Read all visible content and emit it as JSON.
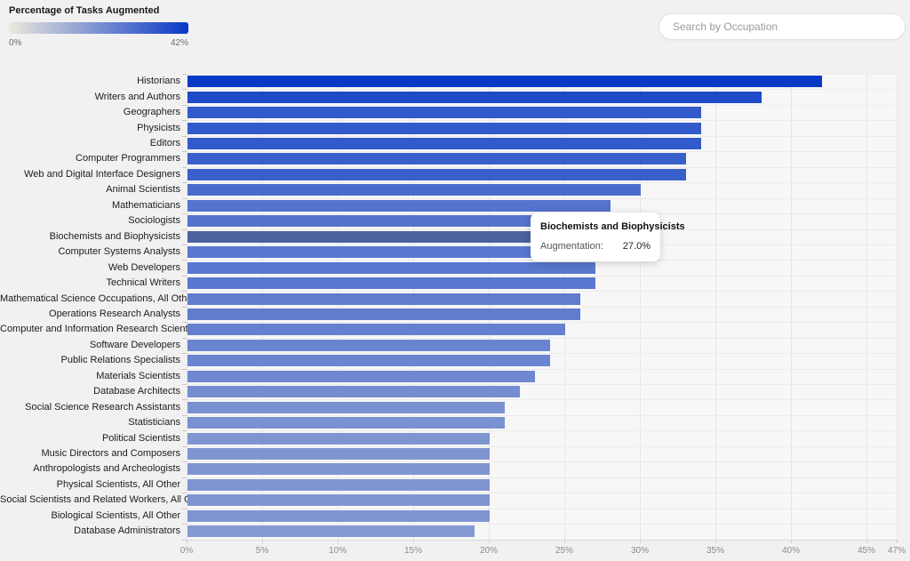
{
  "legend": {
    "title": "Percentage of Tasks Augmented",
    "min_label": "0%",
    "max_label": "42%"
  },
  "search": {
    "placeholder": "Search by Occupation"
  },
  "tooltip": {
    "title": "Biochemists and Biophysicists",
    "label": "Augmentation:",
    "value": "27.0%"
  },
  "chart_data": {
    "type": "bar",
    "orientation": "horizontal",
    "title": "Percentage of Tasks Augmented",
    "xlabel": "",
    "ylabel": "",
    "xlim": [
      0,
      47
    ],
    "x_tick_labels": [
      "0%",
      "5%",
      "10%",
      "15%",
      "20%",
      "25%",
      "30%",
      "35%",
      "40%",
      "45%",
      "47%"
    ],
    "x_tick_values": [
      0,
      5,
      10,
      15,
      20,
      25,
      30,
      35,
      40,
      45,
      47
    ],
    "grid": true,
    "categories": [
      "Historians",
      "Writers and Authors",
      "Geographers",
      "Physicists",
      "Editors",
      "Computer Programmers",
      "Web and Digital Interface Designers",
      "Animal Scientists",
      "Mathematicians",
      "Sociologists",
      "Biochemists and Biophysicists",
      "Computer Systems Analysts",
      "Web Developers",
      "Technical Writers",
      "Mathematical Science Occupations, All Other",
      "Operations Research Analysts",
      "Computer and Information Research Scientists",
      "Software Developers",
      "Public Relations Specialists",
      "Materials Scientists",
      "Database Architects",
      "Social Science Research Assistants",
      "Statisticians",
      "Political Scientists",
      "Music Directors and Composers",
      "Anthropologists and Archeologists",
      "Physical Scientists, All Other",
      "Social Scientists and Related Workers, All Other",
      "Biological Scientists, All Other",
      "Database Administrators"
    ],
    "values": [
      42,
      38,
      34,
      34,
      34,
      33,
      33,
      30,
      28,
      28,
      27,
      27,
      27,
      27,
      26,
      26,
      25,
      24,
      24,
      23,
      22,
      21,
      21,
      20,
      20,
      20,
      20,
      20,
      20,
      19
    ],
    "color_scale": {
      "min_value": 0,
      "max_value": 42,
      "min_color": "#ece8dc",
      "max_color": "#0839c6"
    },
    "highlighted_index": 10,
    "highlight_color": "#4c629c"
  }
}
